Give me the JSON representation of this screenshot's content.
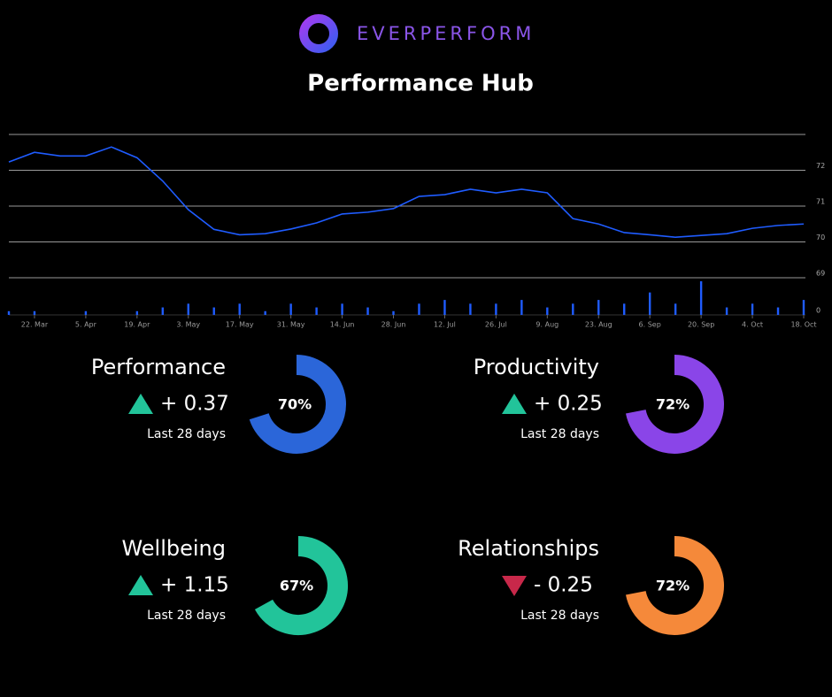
{
  "logo": {
    "text": "EVERPERFORM"
  },
  "title": "Performance Hub",
  "chart_data": [
    {
      "type": "line",
      "series": [
        {
          "color": "#1f5cff",
          "values": [
            72.23,
            72.5,
            72.4,
            72.4,
            72.65,
            72.35,
            71.7,
            70.9,
            70.35,
            70.2,
            70.23,
            70.36,
            70.53,
            70.78,
            70.83,
            70.93,
            71.27,
            71.32,
            71.47,
            71.37,
            71.47,
            71.37,
            70.65,
            70.5,
            70.26,
            70.2,
            70.13,
            70.18,
            70.23,
            70.38,
            70.46,
            70.5
          ]
        }
      ],
      "ylim": [
        69,
        73
      ],
      "yticks": [
        69,
        70,
        71,
        72
      ],
      "grid": true
    },
    {
      "type": "bar",
      "categories": [
        null,
        "22. Mar",
        null,
        "5. Apr",
        null,
        "19. Apr",
        null,
        "3. May",
        null,
        "17. May",
        null,
        "31. May",
        null,
        "14. Jun",
        null,
        "28. Jun",
        null,
        "12. Jul",
        null,
        "26. Jul",
        null,
        "9. Aug",
        null,
        "23. Aug",
        null,
        "6. Sep",
        null,
        "20. Sep",
        null,
        "4. Oct",
        null,
        "18. Oct"
      ],
      "values": [
        1,
        1,
        0,
        1,
        0,
        1,
        2,
        3,
        2,
        3,
        1,
        3,
        2,
        3,
        2,
        1,
        3,
        4,
        3,
        3,
        4,
        2,
        3,
        4,
        3,
        6,
        3,
        9,
        2,
        3,
        2,
        4
      ],
      "color": "#1f5cff",
      "ylim": [
        0,
        9
      ],
      "yticks": [
        0
      ]
    }
  ],
  "cards": [
    {
      "label": "Performance",
      "direction": "up",
      "change": "+ 0.37",
      "period": "Last 28 days",
      "value": 70,
      "value_label": "70%",
      "color": "#2b66d9"
    },
    {
      "label": "Productivity",
      "direction": "up",
      "change": "+ 0.25",
      "period": "Last 28 days",
      "value": 72,
      "value_label": "72%",
      "color": "#8a45e8"
    },
    {
      "label": "Wellbeing",
      "direction": "up",
      "change": "+ 1.15",
      "period": "Last 28 days",
      "value": 67,
      "value_label": "67%",
      "color": "#22c49a"
    },
    {
      "label": "Relationships",
      "direction": "down",
      "change": "- 0.25",
      "period": "Last 28 days",
      "value": 72,
      "value_label": "72%",
      "color": "#f5893a"
    }
  ]
}
